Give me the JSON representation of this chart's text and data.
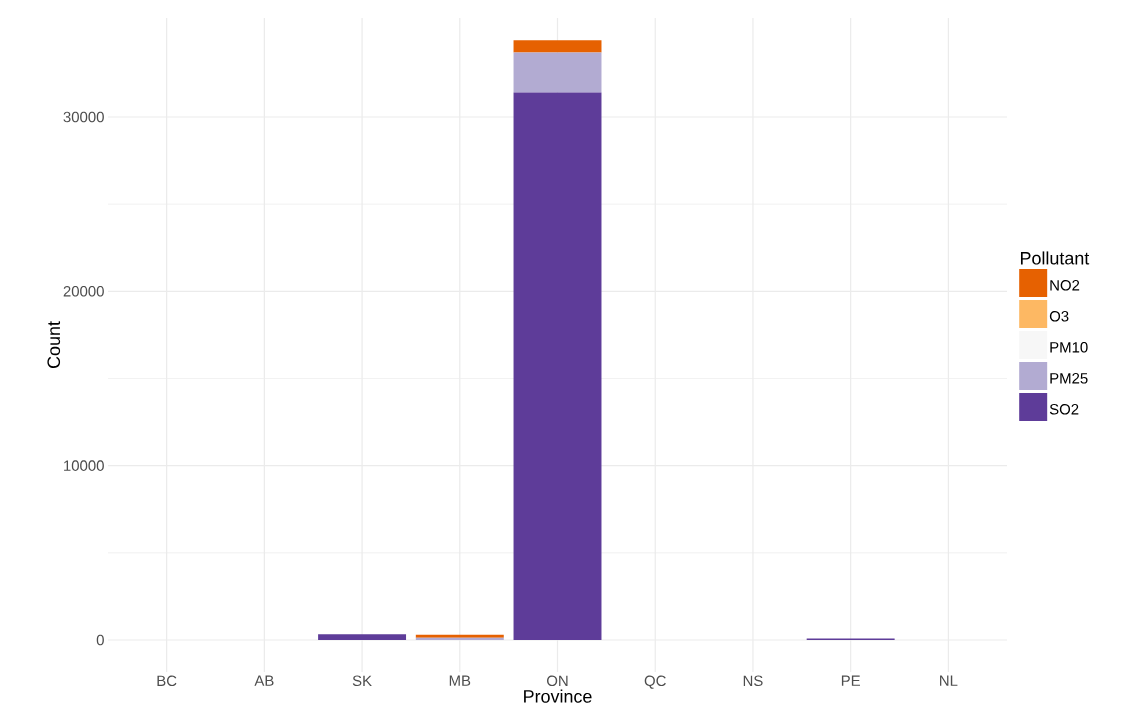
{
  "chart_data": {
    "type": "bar",
    "xlabel": "Province",
    "ylabel": "Count",
    "legend_title": "Pollutant",
    "categories": [
      "BC",
      "AB",
      "SK",
      "MB",
      "ON",
      "QC",
      "NS",
      "PE",
      "NL"
    ],
    "stacked": true,
    "series": [
      {
        "name": "SO2",
        "color": "#5e3c99",
        "values": [
          0,
          0,
          330,
          0,
          31400,
          0,
          0,
          80,
          0
        ]
      },
      {
        "name": "PM25",
        "color": "#b2abd2",
        "values": [
          0,
          0,
          0,
          130,
          2300,
          0,
          0,
          0,
          0
        ]
      },
      {
        "name": "PM10",
        "color": "#f7f7f7",
        "values": [
          0,
          0,
          0,
          0,
          0,
          0,
          0,
          0,
          0
        ]
      },
      {
        "name": "O3",
        "color": "#fdb863",
        "values": [
          0,
          0,
          0,
          0,
          0,
          0,
          0,
          0,
          0
        ]
      },
      {
        "name": "NO2",
        "color": "#e66101",
        "values": [
          0,
          0,
          0,
          170,
          700,
          0,
          0,
          0,
          0
        ]
      }
    ],
    "ylim": [
      -1835,
      35680
    ],
    "yticks": [
      0,
      10000,
      20000,
      30000
    ],
    "grid": true,
    "legend": "right"
  }
}
